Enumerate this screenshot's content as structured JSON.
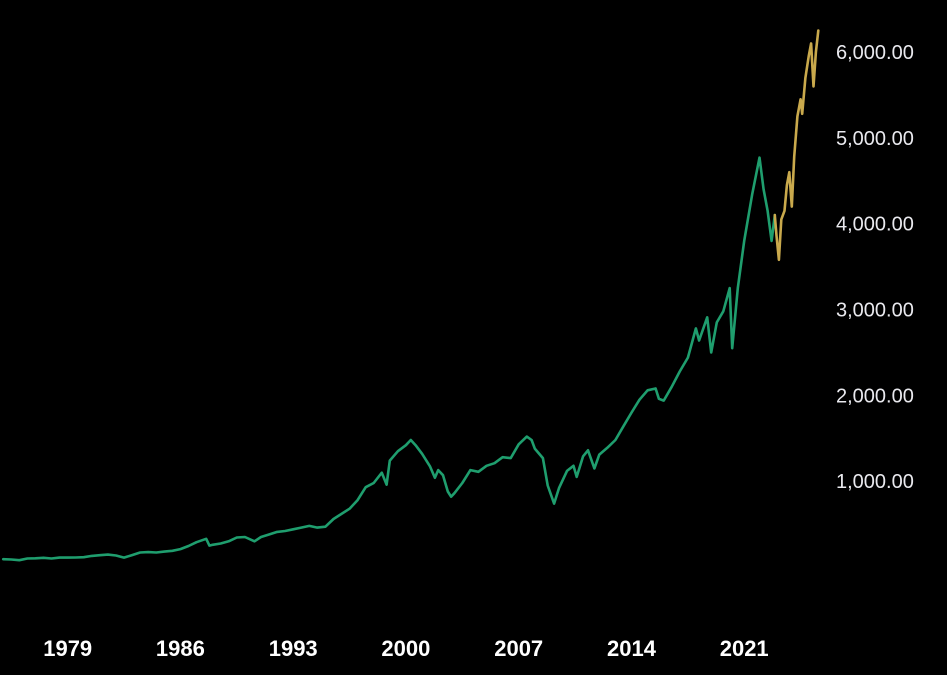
{
  "chart_data": {
    "type": "line",
    "title": "",
    "xlabel": "",
    "ylabel": "",
    "x_tick_labels": [
      "1979",
      "1986",
      "1993",
      "2000",
      "2007",
      "2014",
      "2021"
    ],
    "x_ticks": [
      1979,
      1986,
      1993,
      2000,
      2007,
      2014,
      2021
    ],
    "y_tick_labels": [
      "1,000.00",
      "2,000.00",
      "3,000.00",
      "4,000.00",
      "5,000.00",
      "6,000.00"
    ],
    "y_ticks": [
      1000,
      2000,
      3000,
      4000,
      5000,
      6000
    ],
    "xlim": [
      1974.8,
      2026.2
    ],
    "ylim": [
      -500,
      6350
    ],
    "grid": false,
    "legend": "none",
    "series": [
      {
        "color": "#1f9e6e",
        "points": [
          [
            1975.0,
            92
          ],
          [
            1975.5,
            88
          ],
          [
            1976.0,
            80
          ],
          [
            1976.5,
            100
          ],
          [
            1977.0,
            102
          ],
          [
            1977.5,
            108
          ],
          [
            1978.0,
            100
          ],
          [
            1978.5,
            110
          ],
          [
            1979.0,
            110
          ],
          [
            1979.5,
            112
          ],
          [
            1980.0,
            115
          ],
          [
            1980.5,
            130
          ],
          [
            1981.0,
            138
          ],
          [
            1981.5,
            145
          ],
          [
            1982.0,
            135
          ],
          [
            1982.5,
            110
          ],
          [
            1983.0,
            140
          ],
          [
            1983.5,
            170
          ],
          [
            1984.0,
            175
          ],
          [
            1984.5,
            170
          ],
          [
            1985.0,
            180
          ],
          [
            1985.5,
            190
          ],
          [
            1986.0,
            210
          ],
          [
            1986.5,
            245
          ],
          [
            1987.0,
            290
          ],
          [
            1987.6,
            330
          ],
          [
            1987.8,
            250
          ],
          [
            1988.0,
            260
          ],
          [
            1988.5,
            275
          ],
          [
            1989.0,
            300
          ],
          [
            1989.5,
            345
          ],
          [
            1990.0,
            350
          ],
          [
            1990.6,
            300
          ],
          [
            1991.0,
            350
          ],
          [
            1991.5,
            380
          ],
          [
            1992.0,
            410
          ],
          [
            1992.5,
            420
          ],
          [
            1993.0,
            440
          ],
          [
            1993.5,
            460
          ],
          [
            1994.0,
            480
          ],
          [
            1994.5,
            460
          ],
          [
            1995.0,
            470
          ],
          [
            1995.5,
            560
          ],
          [
            1996.0,
            620
          ],
          [
            1996.5,
            680
          ],
          [
            1997.0,
            780
          ],
          [
            1997.5,
            930
          ],
          [
            1998.0,
            980
          ],
          [
            1998.5,
            1100
          ],
          [
            1998.8,
            960
          ],
          [
            1999.0,
            1240
          ],
          [
            1999.5,
            1350
          ],
          [
            2000.0,
            1420
          ],
          [
            2000.3,
            1480
          ],
          [
            2000.6,
            1420
          ],
          [
            2001.0,
            1320
          ],
          [
            2001.5,
            1170
          ],
          [
            2001.8,
            1040
          ],
          [
            2002.0,
            1130
          ],
          [
            2002.3,
            1070
          ],
          [
            2002.6,
            880
          ],
          [
            2002.8,
            820
          ],
          [
            2003.0,
            860
          ],
          [
            2003.5,
            980
          ],
          [
            2004.0,
            1130
          ],
          [
            2004.5,
            1110
          ],
          [
            2005.0,
            1180
          ],
          [
            2005.5,
            1210
          ],
          [
            2006.0,
            1280
          ],
          [
            2006.5,
            1270
          ],
          [
            2007.0,
            1430
          ],
          [
            2007.5,
            1520
          ],
          [
            2007.8,
            1480
          ],
          [
            2008.0,
            1380
          ],
          [
            2008.5,
            1270
          ],
          [
            2008.8,
            950
          ],
          [
            2009.2,
            740
          ],
          [
            2009.5,
            920
          ],
          [
            2010.0,
            1120
          ],
          [
            2010.4,
            1180
          ],
          [
            2010.6,
            1050
          ],
          [
            2011.0,
            1290
          ],
          [
            2011.3,
            1360
          ],
          [
            2011.7,
            1150
          ],
          [
            2012.0,
            1310
          ],
          [
            2012.5,
            1390
          ],
          [
            2013.0,
            1480
          ],
          [
            2013.5,
            1640
          ],
          [
            2014.0,
            1800
          ],
          [
            2014.5,
            1950
          ],
          [
            2015.0,
            2060
          ],
          [
            2015.5,
            2080
          ],
          [
            2015.7,
            1960
          ],
          [
            2016.0,
            1940
          ],
          [
            2016.5,
            2100
          ],
          [
            2017.0,
            2280
          ],
          [
            2017.5,
            2440
          ],
          [
            2018.0,
            2780
          ],
          [
            2018.2,
            2640
          ],
          [
            2018.7,
            2910
          ],
          [
            2018.95,
            2500
          ],
          [
            2019.3,
            2850
          ],
          [
            2019.7,
            2980
          ],
          [
            2020.1,
            3250
          ],
          [
            2020.25,
            2550
          ],
          [
            2020.6,
            3250
          ],
          [
            2021.0,
            3800
          ],
          [
            2021.5,
            4350
          ],
          [
            2021.95,
            4770
          ],
          [
            2022.2,
            4400
          ],
          [
            2022.45,
            4150
          ],
          [
            2022.7,
            3800
          ],
          [
            2022.9,
            4100
          ]
        ]
      },
      {
        "color": "#c9a94c",
        "points": [
          [
            2022.9,
            4100
          ],
          [
            2023.0,
            3860
          ],
          [
            2023.15,
            3580
          ],
          [
            2023.3,
            4050
          ],
          [
            2023.5,
            4150
          ],
          [
            2023.65,
            4450
          ],
          [
            2023.8,
            4600
          ],
          [
            2023.95,
            4200
          ],
          [
            2024.1,
            4780
          ],
          [
            2024.3,
            5250
          ],
          [
            2024.5,
            5450
          ],
          [
            2024.6,
            5280
          ],
          [
            2024.8,
            5700
          ],
          [
            2025.0,
            5950
          ],
          [
            2025.15,
            6100
          ],
          [
            2025.3,
            5600
          ],
          [
            2025.45,
            6000
          ],
          [
            2025.6,
            6250
          ]
        ]
      }
    ]
  }
}
